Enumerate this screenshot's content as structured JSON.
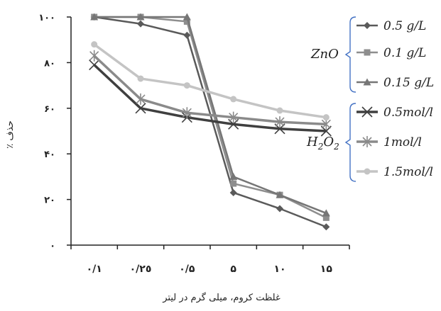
{
  "chart_data": {
    "type": "line",
    "categories": [
      "٠/١",
      "٠/٢٥",
      "٠/۵",
      "۵",
      "١٠",
      "١۵"
    ],
    "y_ticks": [
      "٠",
      "٢٠",
      "۴٠",
      "۶٠",
      "٨٠",
      "١٠٠"
    ],
    "ylim": [
      0,
      100
    ],
    "ylabel": "٪ حذف",
    "xlabel": "غلظت کروم، میلی گرم در لیتر",
    "grid": false,
    "legend_position": "right",
    "legend_groups": [
      {
        "label": "ZnO",
        "series_indices": [
          0,
          1,
          2
        ]
      },
      {
        "label_main": "H",
        "label_sub1": "2",
        "label_mid": "O",
        "label_sub2": "2",
        "series_indices": [
          3,
          4,
          5
        ]
      }
    ],
    "series": [
      {
        "name": "0.5 g/L",
        "values": [
          100,
          97,
          92,
          23,
          16,
          8
        ],
        "color": "#5a5a5a",
        "marker": "diamond"
      },
      {
        "name": "0.1 g/L",
        "values": [
          100,
          100,
          98,
          27,
          22,
          12
        ],
        "color": "#8e8e8e",
        "marker": "square"
      },
      {
        "name": "0.15 g/L",
        "values": [
          100,
          100,
          100,
          30,
          22,
          14
        ],
        "color": "#767676",
        "marker": "triangle"
      },
      {
        "name": "0.5mol/l",
        "values": [
          79,
          60,
          56,
          53,
          51,
          50
        ],
        "color": "#3f3f3f",
        "marker": "x"
      },
      {
        "name": "1mol/l",
        "values": [
          83,
          64,
          58,
          56,
          54,
          53
        ],
        "color": "#8a8a8a",
        "marker": "star"
      },
      {
        "name": "1.5mol/l",
        "values": [
          88,
          73,
          70,
          64,
          59,
          56
        ],
        "color": "#c4c4c4",
        "marker": "circle"
      }
    ],
    "bracket_colors": {
      "ZnO": "#4472c4",
      "H2O2": "#4472c4"
    }
  }
}
